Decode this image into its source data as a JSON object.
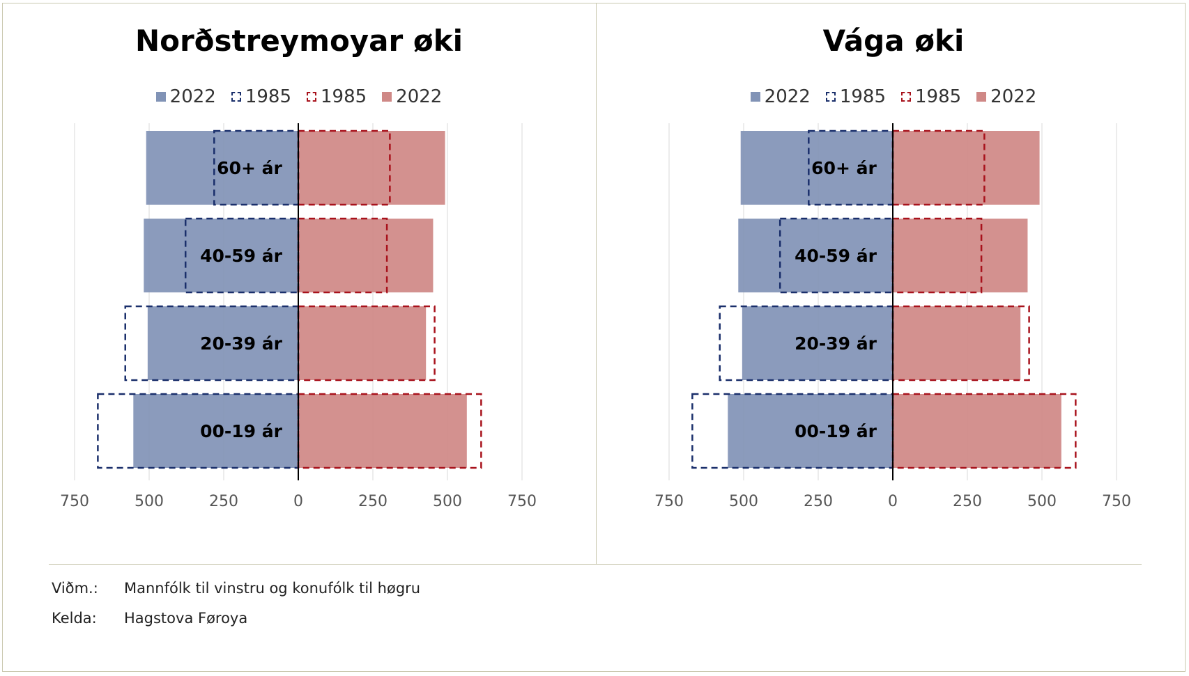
{
  "charts": [
    {
      "title": "Norðstreymoyar øki",
      "legend": [
        {
          "label": "2022",
          "style": "solid",
          "color": "#8193b6"
        },
        {
          "label": "1985",
          "style": "dashed",
          "color": "#1a2f6b"
        },
        {
          "label": "1985",
          "style": "dashed",
          "color": "#a8121c"
        },
        {
          "label": "2022",
          "style": "solid",
          "color": "#cf8886"
        }
      ]
    },
    {
      "title": "Vága øki",
      "legend": [
        {
          "label": "2022",
          "style": "solid",
          "color": "#8193b6"
        },
        {
          "label": "1985",
          "style": "dashed",
          "color": "#1a2f6b"
        },
        {
          "label": "1985",
          "style": "dashed",
          "color": "#a8121c"
        },
        {
          "label": "2022",
          "style": "solid",
          "color": "#cf8886"
        }
      ]
    }
  ],
  "chart_data": [
    {
      "type": "bar",
      "orientation": "horizontal-population-pyramid",
      "title": "Norðstreymoyar øki",
      "categories": [
        "60+ ár",
        "40-59 ár",
        "20-39 ár",
        "00-19 ár"
      ],
      "series": [
        {
          "name": "2022",
          "side": "male",
          "values": [
            510,
            518,
            505,
            553
          ]
        },
        {
          "name": "1985",
          "side": "male",
          "values": [
            282,
            378,
            580,
            672
          ]
        },
        {
          "name": "1985",
          "side": "female",
          "values": [
            307,
            297,
            457,
            613
          ]
        },
        {
          "name": "2022",
          "side": "female",
          "values": [
            492,
            452,
            428,
            565
          ]
        }
      ],
      "xlim": [
        -750,
        750
      ],
      "xticks": [
        -750,
        -500,
        -250,
        0,
        250,
        500,
        750
      ],
      "xtick_labels": [
        "750",
        "500",
        "250",
        "0",
        "250",
        "500",
        "750"
      ]
    },
    {
      "type": "bar",
      "orientation": "horizontal-population-pyramid",
      "title": "Vága øki",
      "categories": [
        "60+ ár",
        "40-59 ár",
        "20-39 ár",
        "00-19 ár"
      ],
      "series": [
        {
          "name": "2022",
          "side": "male",
          "values": [
            510,
            518,
            505,
            553
          ]
        },
        {
          "name": "1985",
          "side": "male",
          "values": [
            282,
            378,
            580,
            672
          ]
        },
        {
          "name": "1985",
          "side": "female",
          "values": [
            307,
            297,
            457,
            613
          ]
        },
        {
          "name": "2022",
          "side": "female",
          "values": [
            492,
            452,
            428,
            565
          ]
        }
      ],
      "xlim": [
        -750,
        750
      ],
      "xticks": [
        -750,
        -500,
        -250,
        0,
        250,
        500,
        750
      ],
      "xtick_labels": [
        "750",
        "500",
        "250",
        "0",
        "250",
        "500",
        "750"
      ]
    }
  ],
  "notes": {
    "note_label": "Viðm.:",
    "note_text": "Mannfólk til vinstru og konufólk til høgru",
    "source_label": "Kelda:",
    "source_text": "Hagstova Føroya"
  },
  "colors": {
    "male_2022": "#8193b6",
    "male_1985": "#1a2f6b",
    "female_1985": "#a8121c",
    "female_2022": "#cf8886",
    "grid": "#d9d9d9",
    "axis": "#000000",
    "tick_label": "#555555"
  }
}
